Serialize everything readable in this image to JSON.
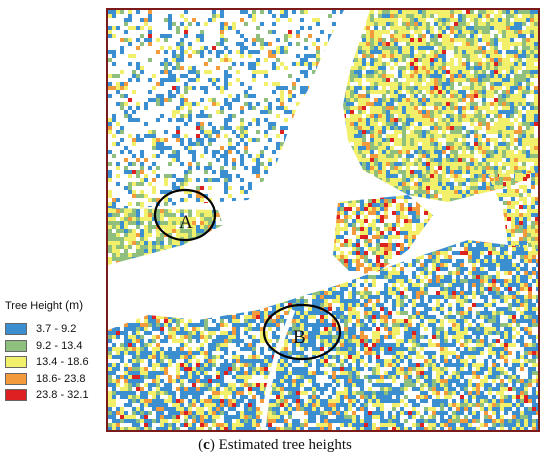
{
  "map": {
    "markers": [
      {
        "label": "A"
      },
      {
        "label": "B"
      }
    ]
  },
  "legend": {
    "title": "Tree Height",
    "unit": "(m)",
    "classes": [
      {
        "range": "3.7 - 9.2",
        "color": "#3b8fd0"
      },
      {
        "range": "9.2 - 13.4",
        "color": "#8fbf7f"
      },
      {
        "range": "13.4 - 18.6",
        "color": "#f2f06a"
      },
      {
        "range": "18.6- 23.8",
        "color": "#f39a3c"
      },
      {
        "range": "23.8 - 32.1",
        "color": "#dd2020"
      }
    ]
  },
  "caption": {
    "letter": "c",
    "text": " Estimated tree heights"
  }
}
